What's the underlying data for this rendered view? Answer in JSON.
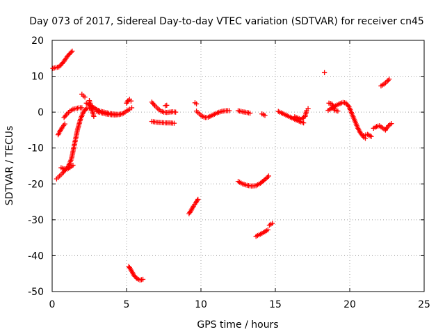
{
  "chart_data": {
    "type": "scatter",
    "title": "Day 073 of 2017, Sidereal Day-to-day VTEC variation (SDTVAR) for receiver cn45",
    "xlabel": "GPS time / hours",
    "ylabel": "SDTVAR / TECUs",
    "xlim": [
      0,
      25
    ],
    "ylim": [
      -50,
      20
    ],
    "xticks": [
      "0",
      "5",
      "10",
      "15",
      "20",
      "25"
    ],
    "yticks": [
      "20",
      "10",
      "0",
      "-10",
      "-20",
      "-30",
      "-40",
      "-50"
    ],
    "grid": true,
    "marker": "plus",
    "color": "#ff0000",
    "series": [
      {
        "name": "SDTVAR",
        "segments": [
          {
            "x": [
              0.05,
              0.25,
              0.45,
              0.6,
              0.8,
              1.0,
              1.2,
              1.35
            ],
            "y": [
              12.2,
              12.4,
              12.6,
              13.2,
              14.2,
              15.4,
              16.4,
              17.0
            ]
          },
          {
            "x": [
              0.4,
              0.5,
              0.6,
              0.7,
              0.85
            ],
            "y": [
              -6.3,
              -5.5,
              -4.8,
              -4.1,
              -3.3
            ]
          },
          {
            "x": [
              0.3,
              0.5,
              0.7,
              0.9,
              1.1,
              1.3,
              1.5,
              1.7,
              1.9,
              2.1,
              2.3,
              2.6
            ],
            "y": [
              -18.6,
              -17.8,
              -17.0,
              -16.0,
              -15.0,
              -13.0,
              -9.0,
              -5.0,
              -2.0,
              0.0,
              1.0,
              1.2
            ]
          },
          {
            "x": [
              0.6,
              0.8,
              1.0,
              1.2,
              1.4
            ],
            "y": [
              -15.5,
              -15.8,
              -15.9,
              -15.4,
              -14.8
            ]
          },
          {
            "x": [
              0.8,
              1.0,
              1.2,
              1.4,
              1.6,
              1.8,
              2.0
            ],
            "y": [
              -1.5,
              -0.5,
              0.3,
              0.8,
              1.0,
              1.2,
              1.2
            ]
          },
          {
            "x": [
              2.0,
              2.1,
              2.2
            ],
            "y": [
              5.0,
              4.5,
              4.2
            ]
          },
          {
            "x": [
              2.3,
              2.5,
              2.7,
              2.9,
              3.1,
              3.3,
              3.5,
              3.7,
              3.9,
              4.1,
              4.3,
              4.5,
              4.7
            ],
            "y": [
              2.5,
              2.0,
              1.5,
              1.0,
              0.5,
              0.2,
              0.0,
              -0.2,
              -0.4,
              -0.5,
              -0.6,
              -0.6,
              -0.5
            ]
          },
          {
            "x": [
              2.5,
              2.8
            ],
            "y": [
              3.2,
              -1.2
            ]
          },
          {
            "x": [
              3.0,
              3.3,
              3.6,
              3.9,
              4.2,
              4.5,
              4.8,
              5.0,
              5.2,
              5.35
            ],
            "y": [
              0.2,
              -0.2,
              -0.5,
              -0.7,
              -0.8,
              -0.7,
              -0.3,
              0.3,
              0.8,
              1.2
            ]
          },
          {
            "x": [
              5.0,
              5.1,
              5.2,
              5.3
            ],
            "y": [
              2.5,
              3.2,
              3.6,
              3.1
            ]
          },
          {
            "x": [
              5.15,
              5.3,
              5.5,
              5.7,
              5.9,
              6.1
            ],
            "y": [
              -43.0,
              -44.0,
              -45.5,
              -46.4,
              -46.8,
              -46.6
            ]
          },
          {
            "x": [
              6.7,
              6.9,
              7.1,
              7.3,
              7.5,
              7.7,
              7.9,
              8.1,
              8.3
            ],
            "y": [
              2.8,
              1.8,
              1.0,
              0.3,
              0.0,
              -0.1,
              0.0,
              0.1,
              0.0
            ]
          },
          {
            "x": [
              6.7,
              7.0,
              7.3,
              7.6,
              7.9,
              8.2
            ],
            "y": [
              -2.6,
              -2.8,
              -2.9,
              -3.0,
              -3.0,
              -3.1
            ]
          },
          {
            "x": [
              7.6,
              7.7
            ],
            "y": [
              1.8,
              1.9
            ]
          },
          {
            "x": [
              9.2,
              9.35,
              9.5,
              9.65,
              9.8
            ],
            "y": [
              -28.3,
              -27.3,
              -26.2,
              -25.3,
              -24.3
            ]
          },
          {
            "x": [
              9.6,
              9.7
            ],
            "y": [
              2.6,
              2.3
            ]
          },
          {
            "x": [
              9.7,
              9.9,
              10.1,
              10.3,
              10.5,
              10.7,
              10.9,
              11.1,
              11.3,
              11.5,
              11.7,
              11.9
            ],
            "y": [
              0.3,
              -0.5,
              -1.2,
              -1.5,
              -1.4,
              -1.0,
              -0.6,
              -0.2,
              0.1,
              0.3,
              0.4,
              0.4
            ]
          },
          {
            "x": [
              12.5,
              12.8,
              13.1,
              13.3
            ],
            "y": [
              0.4,
              0.1,
              -0.1,
              -0.3
            ]
          },
          {
            "x": [
              12.5,
              12.8,
              13.1,
              13.4,
              13.7,
              14.0,
              14.3,
              14.55
            ],
            "y": [
              -19.3,
              -20.0,
              -20.4,
              -20.6,
              -20.5,
              -19.8,
              -18.8,
              -17.8
            ]
          },
          {
            "x": [
              14.1,
              14.3
            ],
            "y": [
              -0.5,
              -0.9
            ]
          },
          {
            "x": [
              13.7,
              13.9,
              14.1,
              14.3,
              14.5
            ],
            "y": [
              -34.6,
              -34.2,
              -33.8,
              -33.3,
              -32.8
            ]
          },
          {
            "x": [
              14.6,
              14.8
            ],
            "y": [
              -31.5,
              -31.0
            ]
          },
          {
            "x": [
              15.2,
              15.5,
              15.8,
              16.1,
              16.4,
              16.7,
              16.9
            ],
            "y": [
              0.2,
              -0.4,
              -1.0,
              -1.6,
              -2.2,
              -2.7,
              -3.0
            ]
          },
          {
            "x": [
              16.3,
              16.5,
              16.7,
              16.9,
              17.0,
              17.1,
              17.2
            ],
            "y": [
              -1.3,
              -1.6,
              -2.0,
              -1.5,
              -1.2,
              0.4,
              1.0
            ]
          },
          {
            "x": [
              18.3
            ],
            "y": [
              11.0
            ]
          },
          {
            "x": [
              18.55,
              18.75,
              18.95,
              19.15,
              19.35,
              19.55,
              19.75,
              19.95,
              20.15,
              20.35,
              20.55,
              20.75,
              20.95,
              21.05
            ],
            "y": [
              0.5,
              1.0,
              1.5,
              2.0,
              2.4,
              2.7,
              2.5,
              1.5,
              -0.5,
              -2.5,
              -4.5,
              -6.0,
              -7.0,
              -7.3
            ]
          },
          {
            "x": [
              18.6,
              18.8,
              19.0,
              19.2
            ],
            "y": [
              2.5,
              2.3,
              0.5,
              0.3
            ]
          },
          {
            "x": [
              20.95,
              21.2,
              21.45
            ],
            "y": [
              -6.5,
              -6.2,
              -6.8
            ]
          },
          {
            "x": [
              21.6,
              21.8,
              22.0,
              22.2,
              22.4,
              22.6,
              22.8
            ],
            "y": [
              -4.5,
              -4.0,
              -3.8,
              -4.4,
              -5.0,
              -3.8,
              -3.2
            ]
          },
          {
            "x": [
              22.1,
              22.3,
              22.5,
              22.65
            ],
            "y": [
              7.3,
              7.8,
              8.5,
              9.2
            ]
          }
        ]
      }
    ]
  }
}
